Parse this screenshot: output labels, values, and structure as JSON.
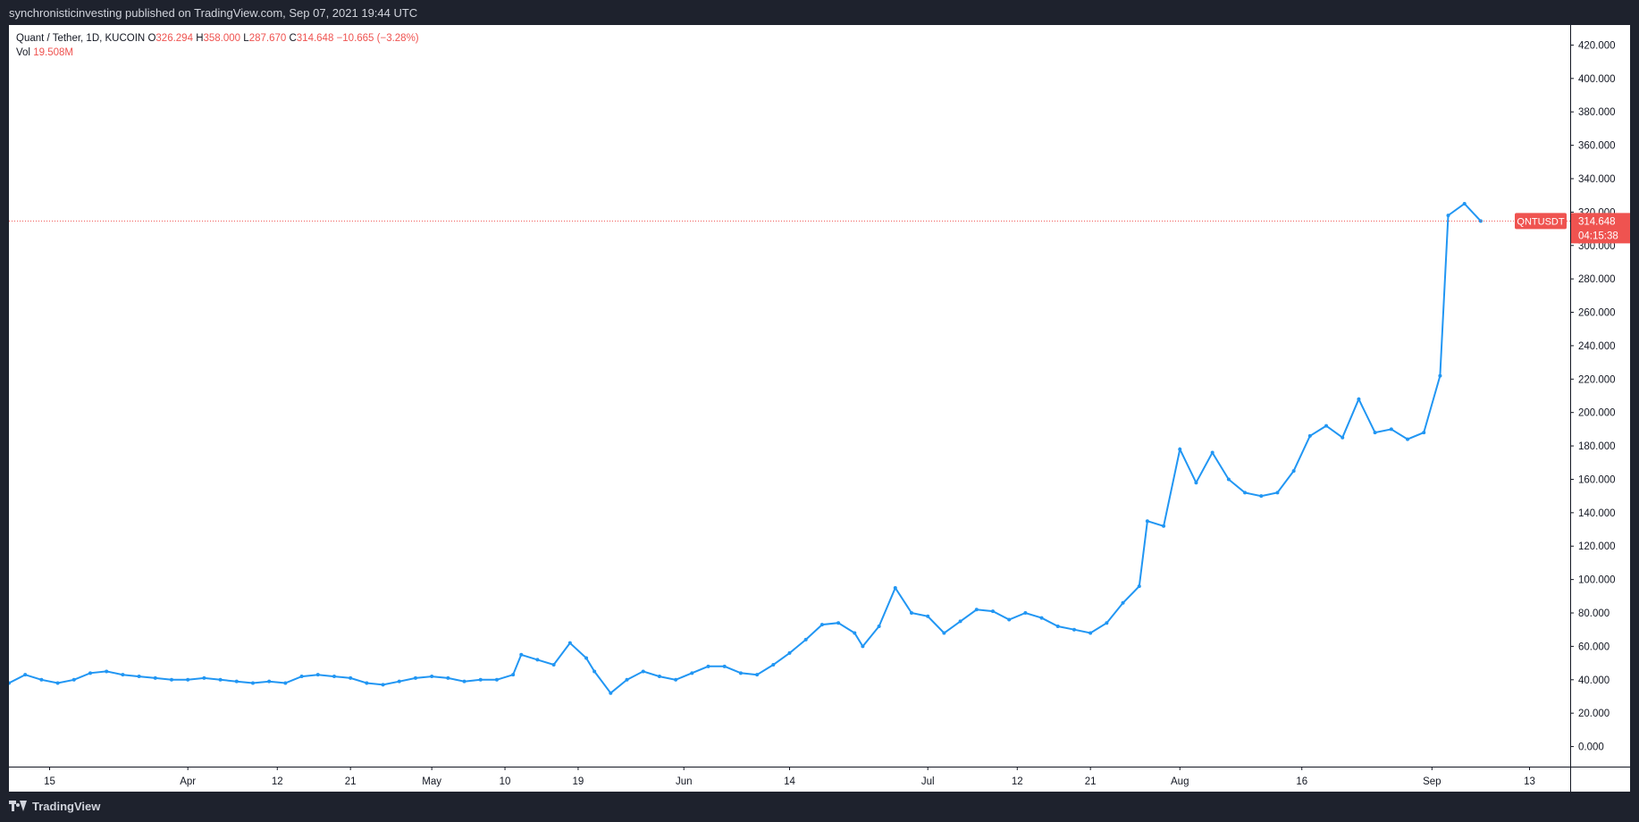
{
  "header": {
    "published": "synchronisticinvesting published on TradingView.com, Sep 07, 2021 19:44 UTC"
  },
  "footer": {
    "brand": "TradingView"
  },
  "legend": {
    "symbol": "Quant / Tether, 1D, KUCOIN",
    "o_label": "O",
    "o": "326.294",
    "h_label": "H",
    "h": "358.000",
    "l_label": "L",
    "l": "287.670",
    "c_label": "C",
    "c": "314.648",
    "change": "−10.665 (−3.28%)",
    "vol_label": "Vol",
    "vol": "19.508M"
  },
  "price_label": {
    "ticker": "QNTUSDT",
    "price": "314.648",
    "countdown": "04:15:38"
  },
  "colors": {
    "up": "#2196f3",
    "down": "#ef5350",
    "vol_up": "#8fd3c8",
    "vol_down": "#f5a3a3",
    "axis": "#131722"
  },
  "chart_data": {
    "type": "candlestick",
    "symbol": "QNTUSDT",
    "interval": "1D",
    "exchange": "KUCOIN",
    "ylim": [
      -12,
      432
    ],
    "yticks": [
      "0.000",
      "20.000",
      "40.000",
      "60.000",
      "80.000",
      "100.000",
      "120.000",
      "140.000",
      "160.000",
      "180.000",
      "200.000",
      "220.000",
      "240.000",
      "260.000",
      "280.000",
      "300.000",
      "320.000",
      "340.000",
      "360.000",
      "380.000",
      "400.000",
      "420.000"
    ],
    "xticks": [
      {
        "label": "15",
        "date": "2021-03-15"
      },
      {
        "label": "Apr",
        "date": "2021-04-01"
      },
      {
        "label": "12",
        "date": "2021-04-12"
      },
      {
        "label": "21",
        "date": "2021-04-21"
      },
      {
        "label": "May",
        "date": "2021-05-01"
      },
      {
        "label": "10",
        "date": "2021-05-10"
      },
      {
        "label": "19",
        "date": "2021-05-19"
      },
      {
        "label": "Jun",
        "date": "2021-06-01"
      },
      {
        "label": "14",
        "date": "2021-06-14"
      },
      {
        "label": "Jul",
        "date": "2021-07-01"
      },
      {
        "label": "12",
        "date": "2021-07-12"
      },
      {
        "label": "21",
        "date": "2021-07-21"
      },
      {
        "label": "Aug",
        "date": "2021-08-01"
      },
      {
        "label": "16",
        "date": "2021-08-16"
      },
      {
        "label": "Sep",
        "date": "2021-09-01"
      },
      {
        "label": "13",
        "date": "2021-09-13"
      }
    ],
    "last_price": 314.648,
    "closes": [
      {
        "date": "2021-03-10",
        "close": 38
      },
      {
        "date": "2021-03-12",
        "close": 43
      },
      {
        "date": "2021-03-14",
        "close": 40
      },
      {
        "date": "2021-03-16",
        "close": 38
      },
      {
        "date": "2021-03-18",
        "close": 40
      },
      {
        "date": "2021-03-20",
        "close": 44
      },
      {
        "date": "2021-03-22",
        "close": 45
      },
      {
        "date": "2021-03-24",
        "close": 43
      },
      {
        "date": "2021-03-26",
        "close": 42
      },
      {
        "date": "2021-03-28",
        "close": 41
      },
      {
        "date": "2021-03-30",
        "close": 40
      },
      {
        "date": "2021-04-01",
        "close": 40
      },
      {
        "date": "2021-04-03",
        "close": 41
      },
      {
        "date": "2021-04-05",
        "close": 40
      },
      {
        "date": "2021-04-07",
        "close": 39
      },
      {
        "date": "2021-04-09",
        "close": 38
      },
      {
        "date": "2021-04-11",
        "close": 39
      },
      {
        "date": "2021-04-13",
        "close": 38
      },
      {
        "date": "2021-04-15",
        "close": 42
      },
      {
        "date": "2021-04-17",
        "close": 43
      },
      {
        "date": "2021-04-19",
        "close": 42
      },
      {
        "date": "2021-04-21",
        "close": 41
      },
      {
        "date": "2021-04-23",
        "close": 38
      },
      {
        "date": "2021-04-25",
        "close": 37
      },
      {
        "date": "2021-04-27",
        "close": 39
      },
      {
        "date": "2021-04-29",
        "close": 41
      },
      {
        "date": "2021-05-01",
        "close": 42
      },
      {
        "date": "2021-05-03",
        "close": 41
      },
      {
        "date": "2021-05-05",
        "close": 39
      },
      {
        "date": "2021-05-07",
        "close": 40
      },
      {
        "date": "2021-05-09",
        "close": 40
      },
      {
        "date": "2021-05-11",
        "close": 43
      },
      {
        "date": "2021-05-12",
        "close": 55
      },
      {
        "date": "2021-05-14",
        "close": 52
      },
      {
        "date": "2021-05-16",
        "close": 49
      },
      {
        "date": "2021-05-18",
        "close": 62
      },
      {
        "date": "2021-05-20",
        "close": 53
      },
      {
        "date": "2021-05-21",
        "close": 45
      },
      {
        "date": "2021-05-23",
        "close": 32
      },
      {
        "date": "2021-05-25",
        "close": 40
      },
      {
        "date": "2021-05-27",
        "close": 45
      },
      {
        "date": "2021-05-29",
        "close": 42
      },
      {
        "date": "2021-05-31",
        "close": 40
      },
      {
        "date": "2021-06-02",
        "close": 44
      },
      {
        "date": "2021-06-04",
        "close": 48
      },
      {
        "date": "2021-06-06",
        "close": 48
      },
      {
        "date": "2021-06-08",
        "close": 44
      },
      {
        "date": "2021-06-10",
        "close": 43
      },
      {
        "date": "2021-06-12",
        "close": 49
      },
      {
        "date": "2021-06-14",
        "close": 56
      },
      {
        "date": "2021-06-16",
        "close": 64
      },
      {
        "date": "2021-06-18",
        "close": 73
      },
      {
        "date": "2021-06-20",
        "close": 74
      },
      {
        "date": "2021-06-22",
        "close": 68
      },
      {
        "date": "2021-06-23",
        "close": 60
      },
      {
        "date": "2021-06-25",
        "close": 72
      },
      {
        "date": "2021-06-27",
        "close": 95
      },
      {
        "date": "2021-06-29",
        "close": 80
      },
      {
        "date": "2021-07-01",
        "close": 78
      },
      {
        "date": "2021-07-03",
        "close": 68
      },
      {
        "date": "2021-07-05",
        "close": 75
      },
      {
        "date": "2021-07-07",
        "close": 82
      },
      {
        "date": "2021-07-09",
        "close": 81
      },
      {
        "date": "2021-07-11",
        "close": 76
      },
      {
        "date": "2021-07-13",
        "close": 80
      },
      {
        "date": "2021-07-15",
        "close": 77
      },
      {
        "date": "2021-07-17",
        "close": 72
      },
      {
        "date": "2021-07-19",
        "close": 70
      },
      {
        "date": "2021-07-21",
        "close": 68
      },
      {
        "date": "2021-07-23",
        "close": 74
      },
      {
        "date": "2021-07-25",
        "close": 86
      },
      {
        "date": "2021-07-27",
        "close": 96
      },
      {
        "date": "2021-07-28",
        "close": 135
      },
      {
        "date": "2021-07-30",
        "close": 132
      },
      {
        "date": "2021-08-01",
        "close": 178
      },
      {
        "date": "2021-08-03",
        "close": 158
      },
      {
        "date": "2021-08-05",
        "close": 176
      },
      {
        "date": "2021-08-07",
        "close": 160
      },
      {
        "date": "2021-08-09",
        "close": 152
      },
      {
        "date": "2021-08-11",
        "close": 150
      },
      {
        "date": "2021-08-13",
        "close": 152
      },
      {
        "date": "2021-08-15",
        "close": 165
      },
      {
        "date": "2021-08-17",
        "close": 186
      },
      {
        "date": "2021-08-19",
        "close": 192
      },
      {
        "date": "2021-08-21",
        "close": 185
      },
      {
        "date": "2021-08-23",
        "close": 208
      },
      {
        "date": "2021-08-25",
        "close": 188
      },
      {
        "date": "2021-08-27",
        "close": 190
      },
      {
        "date": "2021-08-29",
        "close": 184
      },
      {
        "date": "2021-08-31",
        "close": 188
      },
      {
        "date": "2021-09-02",
        "close": 222
      },
      {
        "date": "2021-09-03",
        "close": 318
      },
      {
        "date": "2021-09-05",
        "close": 325
      },
      {
        "date": "2021-09-07",
        "close": 314.648
      }
    ]
  }
}
